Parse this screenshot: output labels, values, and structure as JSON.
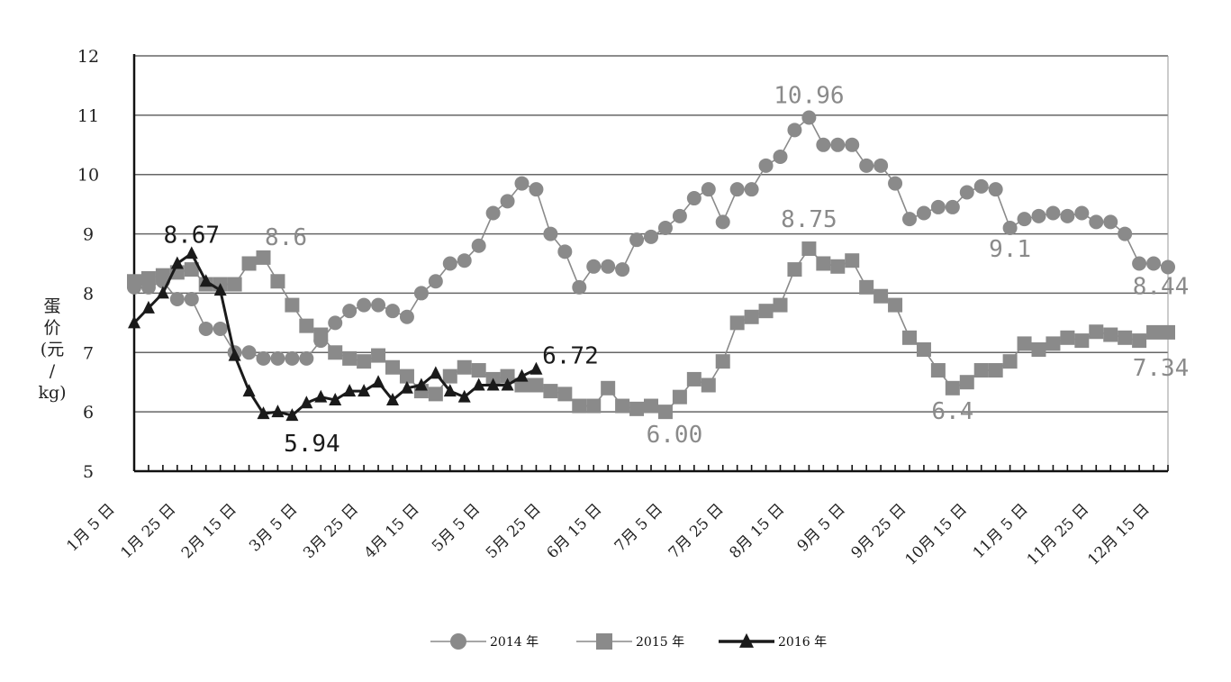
{
  "chart_data": {
    "type": "line",
    "ylabel": "蛋价（元/kg）",
    "ylim": [
      5,
      12
    ],
    "yticks": [
      "5",
      "6",
      "7",
      "8",
      "9",
      "10",
      "11",
      "12"
    ],
    "grid": true,
    "legend_position": "bottom",
    "x_tick_labels": [
      "1月 5 日",
      "1月 25 日",
      "2月 15 日",
      "3月 5 日",
      "3月 25 日",
      "4月 15 日",
      "5月 5 日",
      "5月 25 日",
      "6月 15 日",
      "7月 5 日",
      "7月 25 日",
      "8月 15 日",
      "9月 5 日",
      "9月 25 日",
      "10月 15 日",
      "11月 5 日",
      "11月 25 日",
      "12月 15 日"
    ],
    "series": [
      {
        "name": "2014 年",
        "color": "#8a8a8a",
        "marker": "circle",
        "values": [
          8.1,
          8.1,
          8.2,
          7.9,
          7.9,
          7.4,
          7.4,
          7.0,
          7.0,
          6.9,
          6.9,
          6.9,
          6.9,
          7.2,
          7.5,
          7.7,
          7.8,
          7.8,
          7.7,
          7.6,
          8.0,
          8.2,
          8.5,
          8.55,
          8.8,
          9.35,
          9.55,
          9.85,
          9.75,
          9.0,
          8.7,
          8.1,
          8.45,
          8.45,
          8.4,
          8.9,
          8.95,
          9.1,
          9.3,
          9.6,
          9.75,
          9.2,
          9.75,
          9.75,
          10.15,
          10.3,
          10.75,
          10.96,
          10.5,
          10.5,
          10.5,
          10.15,
          10.15,
          9.85,
          9.25,
          9.35,
          9.45,
          9.45,
          9.7,
          9.8,
          9.75,
          9.1,
          9.25,
          9.3,
          9.35,
          9.3,
          9.35,
          9.2,
          9.2,
          9.0,
          8.5,
          8.5,
          8.44
        ]
      },
      {
        "name": "2015 年",
        "color": "#8a8a8a",
        "marker": "square",
        "values": [
          8.2,
          8.25,
          8.3,
          8.35,
          8.4,
          8.15,
          8.15,
          8.15,
          8.5,
          8.6,
          8.2,
          7.8,
          7.45,
          7.3,
          7.0,
          6.9,
          6.85,
          6.95,
          6.75,
          6.6,
          6.35,
          6.3,
          6.6,
          6.75,
          6.7,
          6.55,
          6.6,
          6.45,
          6.45,
          6.35,
          6.3,
          6.1,
          6.1,
          6.4,
          6.1,
          6.05,
          6.1,
          6.0,
          6.25,
          6.55,
          6.45,
          6.85,
          7.5,
          7.6,
          7.7,
          7.8,
          8.4,
          8.75,
          8.5,
          8.45,
          8.55,
          8.1,
          7.95,
          7.8,
          7.25,
          7.05,
          6.7,
          6.4,
          6.5,
          6.7,
          6.7,
          6.85,
          7.15,
          7.05,
          7.15,
          7.25,
          7.2,
          7.35,
          7.3,
          7.25,
          7.2,
          7.34,
          7.34
        ]
      },
      {
        "name": "2016 年",
        "color": "#1a1a1a",
        "marker": "triangle",
        "values": [
          7.5,
          7.75,
          8.0,
          8.5,
          8.67,
          8.2,
          8.05,
          6.95,
          6.35,
          5.97,
          6.0,
          5.94,
          6.15,
          6.25,
          6.2,
          6.35,
          6.35,
          6.5,
          6.2,
          6.4,
          6.45,
          6.65,
          6.35,
          6.25,
          6.45,
          6.45,
          6.45,
          6.6,
          6.72
        ]
      }
    ],
    "annotations": [
      {
        "text": "10.96",
        "x": 47,
        "y": 10.96,
        "series": "2014 年"
      },
      {
        "text": "9.1",
        "x": 61,
        "y": 9.1,
        "series": "2014 年"
      },
      {
        "text": "8.44",
        "x": 72,
        "y": 8.44,
        "series": "2014 年"
      },
      {
        "text": "8.6",
        "x": 9,
        "y": 8.6,
        "series": "2015 年"
      },
      {
        "text": "8.75",
        "x": 47,
        "y": 8.75,
        "series": "2015 年"
      },
      {
        "text": "6.00",
        "x": 37,
        "y": 6.0,
        "series": "2015 年"
      },
      {
        "text": "6.4",
        "x": 57,
        "y": 6.4,
        "series": "2015 年"
      },
      {
        "text": "7.34",
        "x": 72,
        "y": 7.34,
        "series": "2015 年"
      },
      {
        "text": "8.67",
        "x": 4,
        "y": 8.67,
        "series": "2016 年"
      },
      {
        "text": "5.94",
        "x": 11,
        "y": 5.94,
        "series": "2016 年"
      },
      {
        "text": "6.72",
        "x": 28,
        "y": 6.72,
        "series": "2016 年"
      }
    ]
  }
}
